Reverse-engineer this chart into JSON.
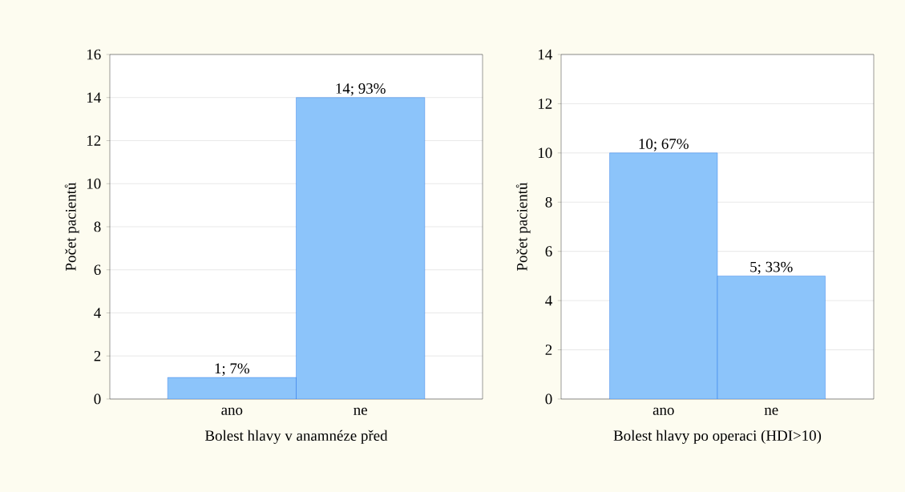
{
  "chart_data": [
    {
      "type": "bar",
      "categories": [
        "ano",
        "ne"
      ],
      "values": [
        1,
        14
      ],
      "value_labels": [
        "1; 7%",
        "14; 93%"
      ],
      "color": "#8cc4fa",
      "ylim": [
        0,
        16
      ],
      "yticks": [
        0,
        2,
        4,
        6,
        8,
        10,
        12,
        14,
        16
      ],
      "grid": "y",
      "xlabel": "Bolest hlavy v anamnéze před",
      "ylabel": "Počet pacientů"
    },
    {
      "type": "bar",
      "categories": [
        "ano",
        "ne"
      ],
      "values": [
        10,
        5
      ],
      "value_labels": [
        "10; 67%",
        "5; 33%"
      ],
      "color": "#8cc4fa",
      "ylim": [
        0,
        14
      ],
      "yticks": [
        0,
        2,
        4,
        6,
        8,
        10,
        12,
        14
      ],
      "grid": "y",
      "xlabel": "Bolest hlavy po operaci (HDI>10)",
      "ylabel": "Počet pacientů"
    }
  ]
}
